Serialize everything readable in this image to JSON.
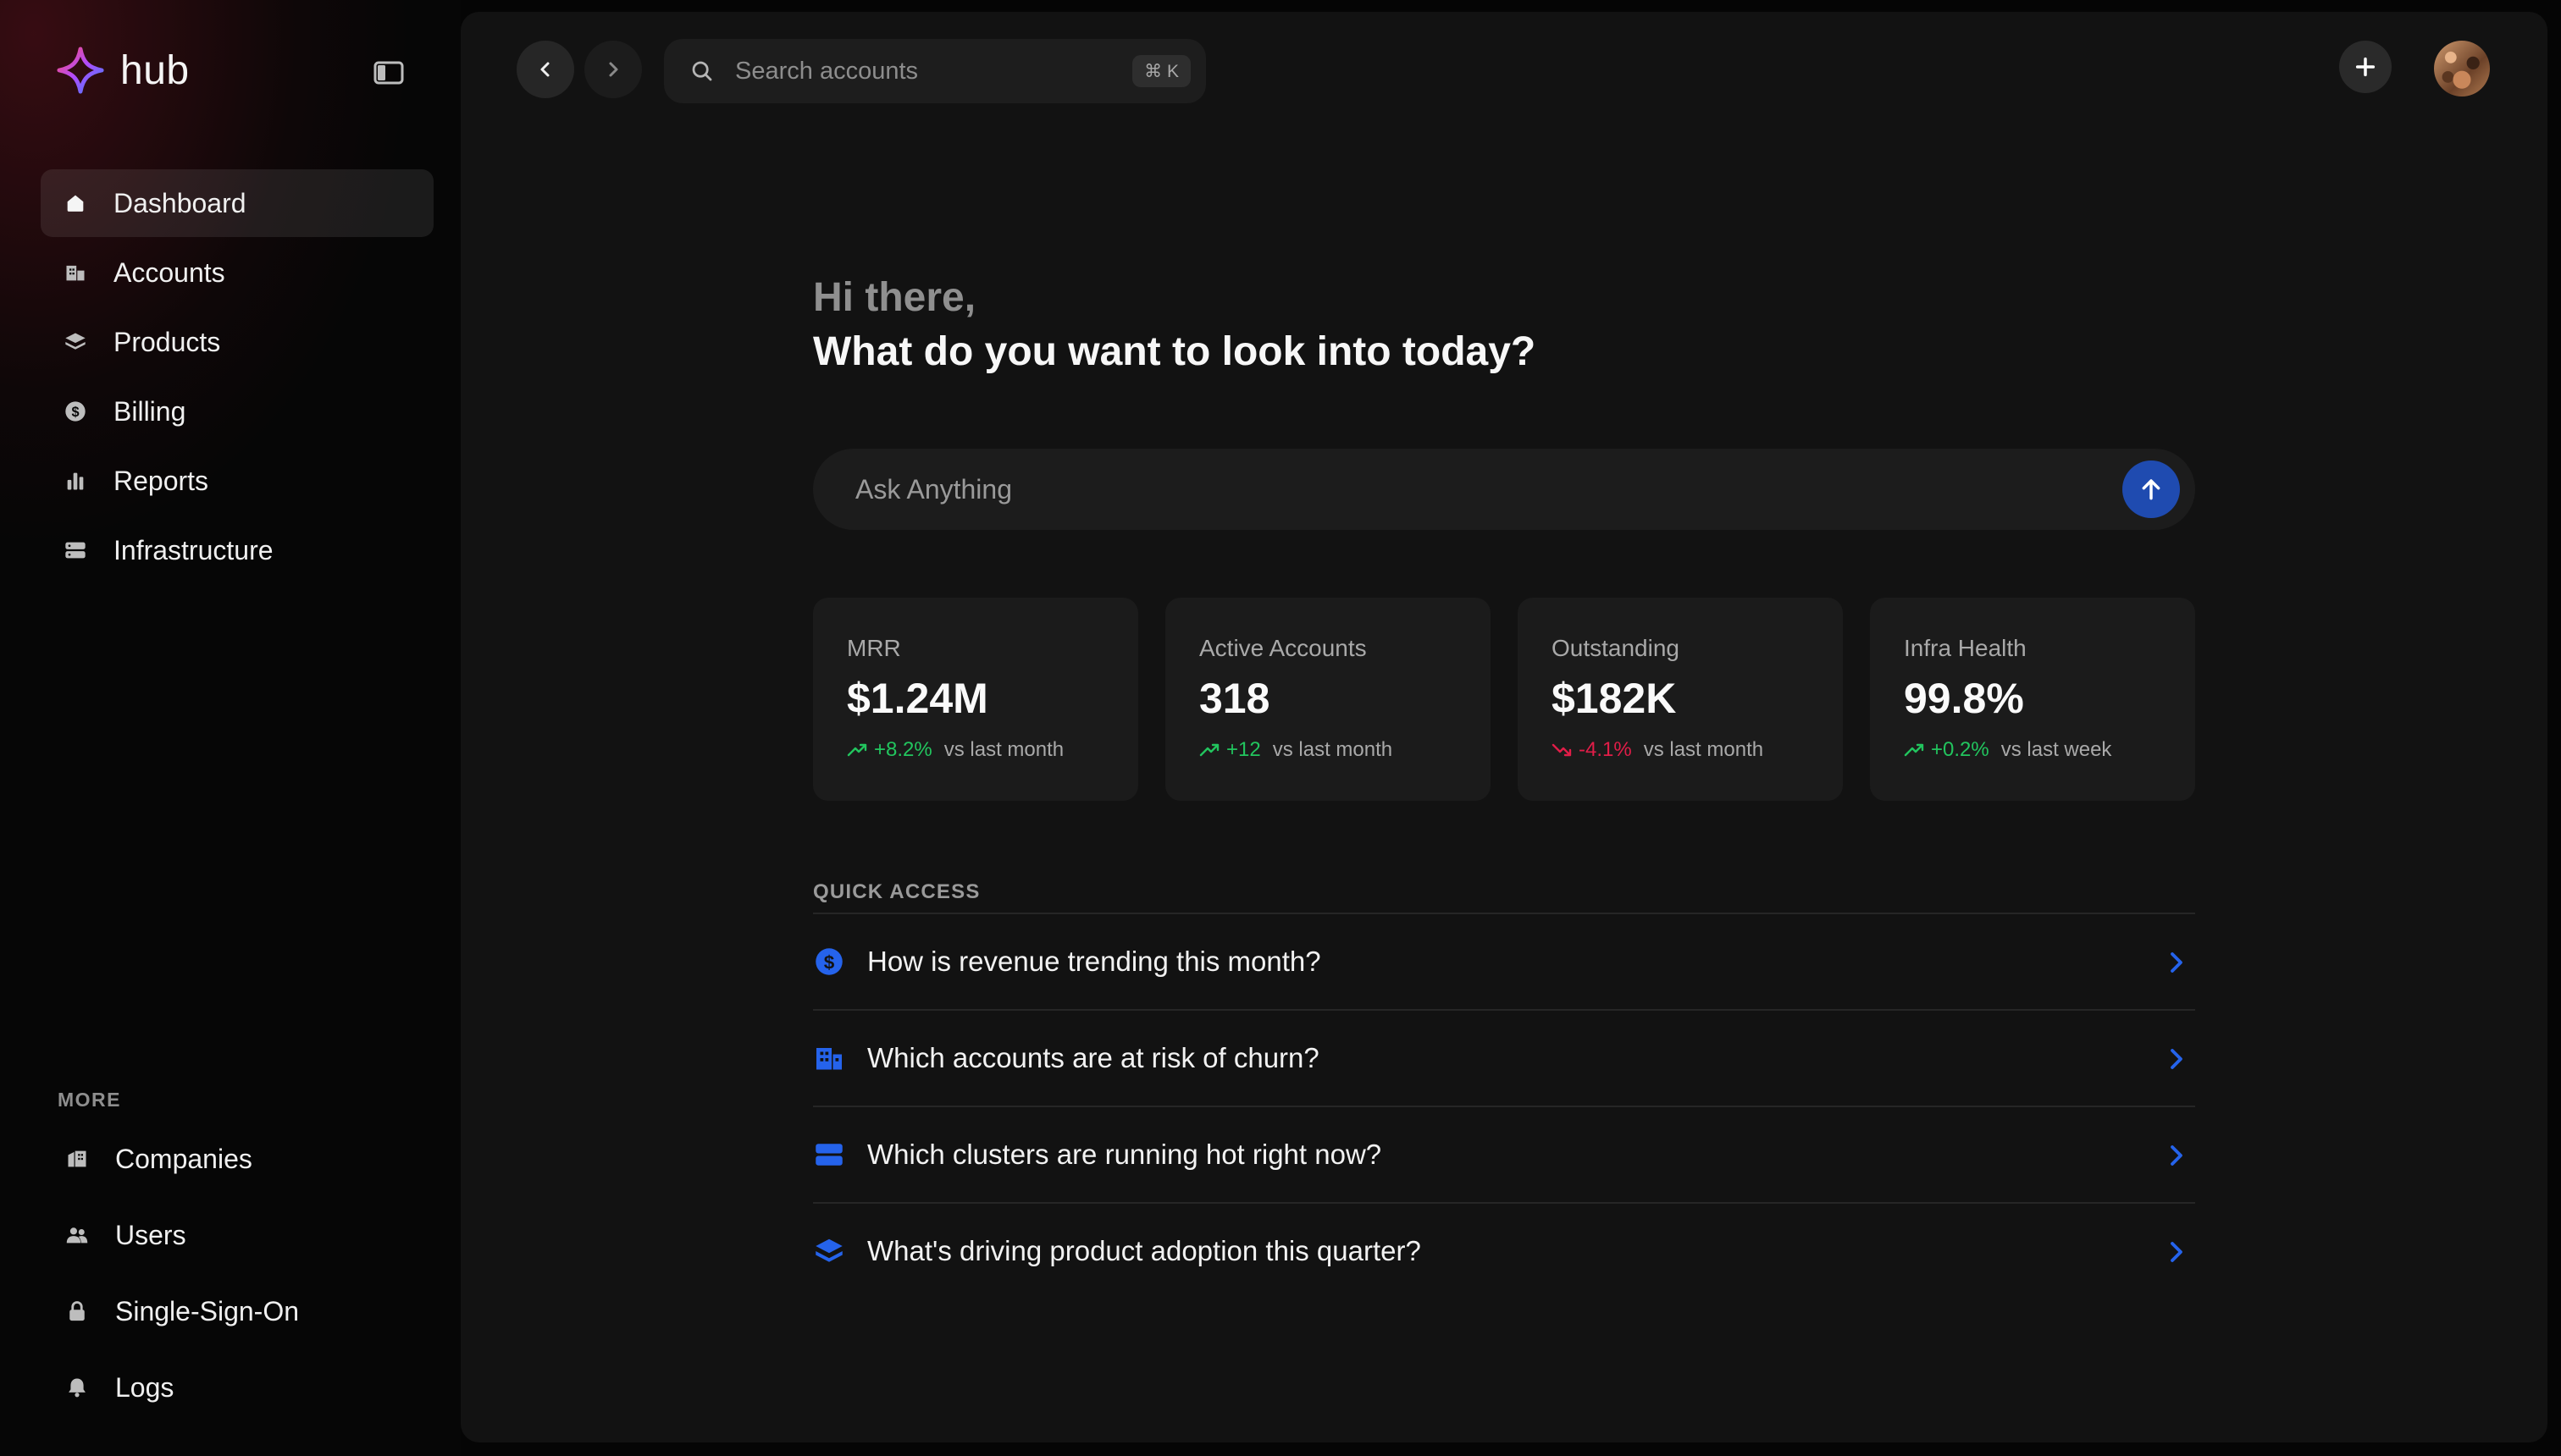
{
  "app": {
    "name": "hub"
  },
  "sidebar": {
    "items": [
      {
        "label": "Dashboard",
        "icon": "home-icon",
        "active": true
      },
      {
        "label": "Accounts",
        "icon": "building-icon"
      },
      {
        "label": "Products",
        "icon": "layers-icon"
      },
      {
        "label": "Billing",
        "icon": "dollar-coin-icon"
      },
      {
        "label": "Reports",
        "icon": "bar-chart-icon"
      },
      {
        "label": "Infrastructure",
        "icon": "server-icon"
      }
    ],
    "more_label": "MORE",
    "more_items": [
      {
        "label": "Companies",
        "icon": "office-icon"
      },
      {
        "label": "Users",
        "icon": "users-icon"
      },
      {
        "label": "Single-Sign-On",
        "icon": "lock-icon"
      },
      {
        "label": "Logs",
        "icon": "bell-icon"
      }
    ]
  },
  "topbar": {
    "search_placeholder": "Search accounts",
    "shortcut": "⌘ K"
  },
  "main": {
    "greeting": "Hi there,",
    "prompt": "What do you want to look into today?",
    "ask_placeholder": "Ask Anything",
    "cards": [
      {
        "label": "MRR",
        "value": "$1.24M",
        "delta": "+8.2%",
        "trend": "up",
        "comparison": "vs last month"
      },
      {
        "label": "Active Accounts",
        "value": "318",
        "delta": "+12",
        "trend": "up",
        "comparison": "vs last month"
      },
      {
        "label": "Outstanding",
        "value": "$182K",
        "delta": "-4.1%",
        "trend": "down",
        "comparison": "vs last month"
      },
      {
        "label": "Infra Health",
        "value": "99.8%",
        "delta": "+0.2%",
        "trend": "up",
        "comparison": "vs last week"
      }
    ],
    "quick_access_label": "QUICK ACCESS",
    "quick_access": [
      {
        "text": "How is revenue trending this month?",
        "icon": "dollar-coin-icon"
      },
      {
        "text": "Which accounts are at risk of churn?",
        "icon": "building-icon"
      },
      {
        "text": "Which clusters are running hot right now?",
        "icon": "server-icon"
      },
      {
        "text": "What's driving product adoption this quarter?",
        "icon": "layers-icon"
      }
    ]
  },
  "colors": {
    "accent": "#2563eb",
    "positive": "#22c55e",
    "negative": "#e11d48",
    "background": "#121212",
    "sidebar": "#060606"
  }
}
